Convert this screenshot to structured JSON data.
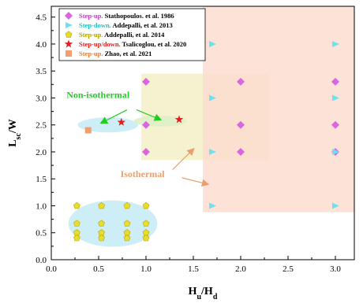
{
  "chart_data": {
    "type": "scatter",
    "xlim": [
      0.0,
      3.2
    ],
    "ylim": [
      0.0,
      4.7
    ],
    "x_ticks": [
      "0.0",
      "0.5",
      "1.0",
      "1.5",
      "2.0",
      "2.5",
      "3.0"
    ],
    "y_ticks": [
      "0.0",
      "0.5",
      "1.0",
      "1.5",
      "2.0",
      "2.5",
      "3.0",
      "3.5",
      "4.0",
      "4.5"
    ],
    "xlabel": {
      "main": "H",
      "sub1": "u",
      "slash": "/H",
      "sub2": "d"
    },
    "ylabel": {
      "main": "L",
      "sub": "sc",
      "rest": "/W"
    },
    "legend_position": "top-left",
    "series": [
      {
        "name": "Stathopoulos. et al. 1986",
        "tag": "Step-up.",
        "tag_color": "#c040c0",
        "marker": "diamond",
        "color": "#d966e0",
        "points": [
          [
            1.0,
            3.3
          ],
          [
            1.0,
            2.5
          ],
          [
            1.0,
            2.0
          ],
          [
            2.0,
            3.3
          ],
          [
            2.0,
            2.5
          ],
          [
            2.0,
            2.0
          ],
          [
            3.0,
            3.3
          ],
          [
            3.0,
            2.5
          ],
          [
            3.0,
            2.0
          ]
        ]
      },
      {
        "name": "Addepalli, et al. 2013",
        "tag": "Step-down.",
        "tag_color": "#20c0c0",
        "marker": "triangle-right",
        "color": "#6ee0ee",
        "points": [
          [
            1.7,
            4.0
          ],
          [
            1.7,
            3.0
          ],
          [
            1.7,
            2.0
          ],
          [
            1.7,
            1.0
          ],
          [
            3.0,
            4.0
          ],
          [
            3.0,
            3.0
          ],
          [
            3.0,
            2.0
          ],
          [
            3.0,
            1.0
          ]
        ]
      },
      {
        "name": "Addepalli, et al. 2014",
        "tag": "Step-up.",
        "tag_color": "#b0a000",
        "marker": "pentagon",
        "color": "#e8dc30",
        "points": [
          [
            0.27,
            1.0
          ],
          [
            0.27,
            0.67
          ],
          [
            0.27,
            0.5
          ],
          [
            0.27,
            0.4
          ],
          [
            0.53,
            1.0
          ],
          [
            0.53,
            0.67
          ],
          [
            0.53,
            0.5
          ],
          [
            0.53,
            0.4
          ],
          [
            0.8,
            1.0
          ],
          [
            0.8,
            0.67
          ],
          [
            0.8,
            0.5
          ],
          [
            0.8,
            0.4
          ],
          [
            1.0,
            1.0
          ],
          [
            1.0,
            0.67
          ],
          [
            1.0,
            0.5
          ],
          [
            1.0,
            0.4
          ]
        ]
      },
      {
        "name": "Tsalicoglou, et al. 2020",
        "tag": "Step-up/down.",
        "tag_color": "#e02020",
        "marker": "star",
        "color": "#e02020",
        "points": [
          [
            0.74,
            2.55
          ],
          [
            1.35,
            2.6
          ]
        ]
      },
      {
        "name": "Zhao, et al. 2021",
        "tag": "Step-up.",
        "tag_color": "#e08040",
        "marker": "square",
        "color": "#f0a070",
        "points": [
          [
            0.39,
            2.4
          ]
        ]
      }
    ],
    "regions": [
      {
        "x": [
          0.95,
          2.3
        ],
        "y": [
          1.85,
          3.45
        ],
        "color": "#f5f0c8"
      },
      {
        "x": [
          1.6,
          3.2
        ],
        "y": [
          0.88,
          4.7
        ],
        "color": "#fbddd0"
      }
    ],
    "ellipses": [
      {
        "cx": 0.6,
        "cy": 2.5,
        "rx": 0.32,
        "ry": 0.14,
        "color": "#c8ecf6"
      },
      {
        "cx": 1.15,
        "cy": 2.57,
        "rx": 0.28,
        "ry": 0.1,
        "color": "#dff0c8"
      },
      {
        "cx": 0.65,
        "cy": 0.67,
        "rx": 0.47,
        "ry": 0.43,
        "color": "#c8ecf6"
      }
    ],
    "annotations": [
      {
        "text": "Non-isothermal",
        "class": "green",
        "x": 0.16,
        "y": 3.0,
        "arrows": [
          [
            0.8,
            2.78,
            0.53,
            2.54
          ],
          [
            0.9,
            2.78,
            1.15,
            2.6
          ]
        ]
      },
      {
        "text": "Isothermal",
        "class": "orange",
        "x": 0.73,
        "y": 1.53,
        "arrows": [
          [
            1.28,
            1.67,
            1.5,
            2.05
          ],
          [
            1.38,
            1.52,
            1.65,
            1.4
          ]
        ]
      }
    ]
  }
}
